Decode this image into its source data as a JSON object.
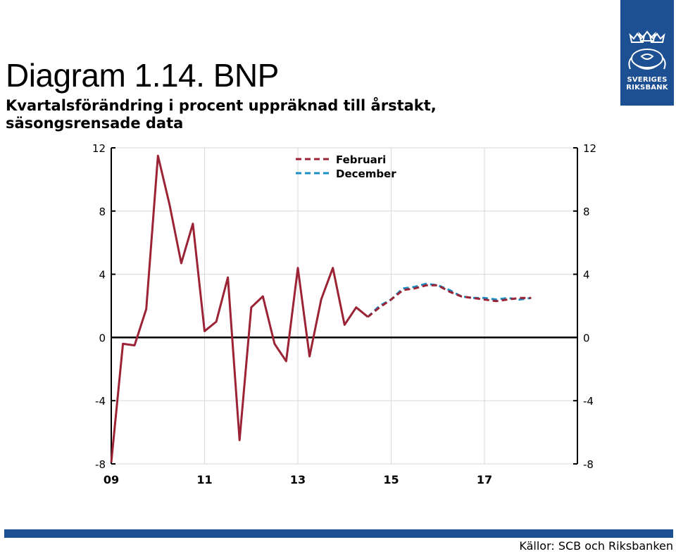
{
  "header": {
    "title": "Diagram 1.14. BNP",
    "subtitle": "Kvartalsförändring i procent uppräknad till årstakt, säsongsrensade data"
  },
  "logo": {
    "line1": "SVERIGES",
    "line2": "RIKSBANK",
    "color": "#1d4f93"
  },
  "footer": {
    "source": "Källor: SCB och Riksbanken",
    "bar_color": "#1d4f93"
  },
  "chart_data": {
    "type": "line",
    "title": "",
    "xlabel": "",
    "ylabel": "",
    "x_tick_labels": [
      "09",
      "11",
      "13",
      "15",
      "17"
    ],
    "y_tick_labels": [
      "12",
      "8",
      "4",
      "0",
      "-4",
      "-8"
    ],
    "ylim": [
      -8,
      12
    ],
    "y_ticks": [
      12,
      8,
      4,
      0,
      -4,
      -8
    ],
    "grid": true,
    "dual_y_axis": true,
    "legend_position": "top-center",
    "x_start_year": 2009,
    "series": [
      {
        "name": "",
        "color": "#9b2335",
        "style": "solid",
        "x": [
          2009.0,
          2009.25,
          2009.5,
          2009.75,
          2010.0,
          2010.25,
          2010.5,
          2010.75,
          2011.0,
          2011.25,
          2011.5,
          2011.75,
          2012.0,
          2012.25,
          2012.5,
          2012.75,
          2013.0,
          2013.25,
          2013.5,
          2013.75,
          2014.0,
          2014.25,
          2014.5
        ],
        "values": [
          -7.9,
          -0.4,
          -0.5,
          1.8,
          11.5,
          8.4,
          4.7,
          7.2,
          0.4,
          1.0,
          3.8,
          -6.5,
          1.9,
          2.6,
          -0.4,
          -1.5,
          4.4,
          -1.2,
          2.4,
          4.4,
          0.8,
          1.9,
          1.3
        ]
      },
      {
        "name": "Februari",
        "color": "#9b2335",
        "style": "dashed",
        "x": [
          2014.5,
          2014.75,
          2015.0,
          2015.25,
          2015.5,
          2015.75,
          2016.0,
          2016.25,
          2016.5,
          2016.75,
          2017.0,
          2017.25,
          2017.5,
          2017.75,
          2018.0
        ],
        "values": [
          1.3,
          1.9,
          2.4,
          3.0,
          3.1,
          3.3,
          3.3,
          2.9,
          2.6,
          2.5,
          2.4,
          2.3,
          2.4,
          2.5,
          2.5
        ]
      },
      {
        "name": "December",
        "color": "#1b8fc4",
        "style": "dashed",
        "x": [
          2014.5,
          2014.75,
          2015.0,
          2015.25,
          2015.5,
          2015.75,
          2016.0,
          2016.25,
          2016.5,
          2016.75,
          2017.0,
          2017.25,
          2017.5,
          2017.75,
          2018.0
        ],
        "values": [
          1.3,
          2.0,
          2.4,
          3.1,
          3.2,
          3.4,
          3.3,
          3.0,
          2.6,
          2.5,
          2.5,
          2.4,
          2.5,
          2.4,
          2.5
        ]
      }
    ]
  }
}
